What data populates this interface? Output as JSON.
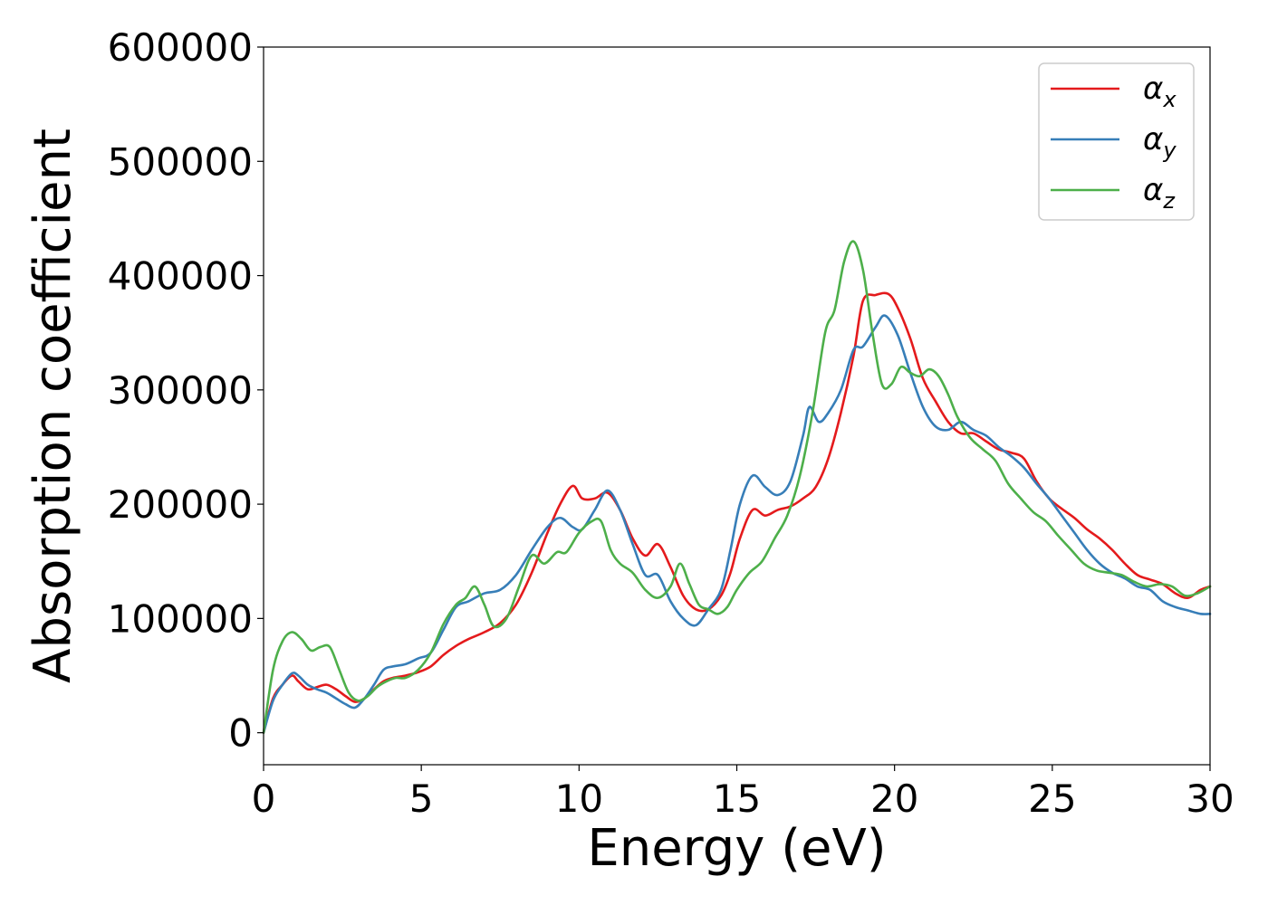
{
  "chart_data": {
    "type": "line",
    "title": "",
    "xlabel": "Energy (eV)",
    "ylabel": "Absorption coefficient",
    "xlim": [
      0,
      30
    ],
    "ylim": [
      -28000,
      600000
    ],
    "xticks": [
      0,
      5,
      10,
      15,
      20,
      25,
      30
    ],
    "yticks": [
      0,
      100000,
      200000,
      300000,
      400000,
      500000,
      600000
    ],
    "xtick_labels": [
      "0",
      "5",
      "10",
      "15",
      "20",
      "25",
      "30"
    ],
    "ytick_labels": [
      "0",
      "100000",
      "200000",
      "300000",
      "400000",
      "500000",
      "600000"
    ],
    "grid": false,
    "legend_position": "top-right",
    "series": [
      {
        "name": "α_x",
        "legend_base": "α",
        "legend_sub": "x",
        "color": "#e41a1c",
        "x": [
          0,
          0.3,
          0.6,
          0.9,
          1.1,
          1.4,
          1.7,
          2.0,
          2.3,
          2.6,
          2.9,
          3.2,
          3.5,
          3.8,
          4.1,
          4.5,
          4.9,
          5.3,
          5.7,
          6.1,
          6.5,
          7.0,
          7.5,
          8.0,
          8.5,
          9.0,
          9.4,
          9.8,
          10.1,
          10.5,
          10.9,
          11.3,
          11.7,
          12.1,
          12.5,
          12.9,
          13.3,
          13.7,
          14.1,
          14.5,
          14.8,
          15.1,
          15.5,
          15.9,
          16.3,
          16.7,
          17.1,
          17.5,
          17.9,
          18.3,
          18.7,
          19.0,
          19.4,
          19.8,
          20.1,
          20.5,
          20.9,
          21.3,
          21.7,
          22.1,
          22.5,
          22.9,
          23.3,
          23.7,
          24.1,
          24.5,
          24.9,
          25.3,
          25.7,
          26.1,
          26.5,
          26.9,
          27.3,
          27.7,
          28.1,
          28.5,
          28.9,
          29.3,
          29.7,
          30.0
        ],
        "y": [
          0,
          30000,
          42000,
          50000,
          45000,
          38000,
          40000,
          42000,
          38000,
          32000,
          27000,
          30000,
          38000,
          45000,
          48000,
          50000,
          53000,
          58000,
          68000,
          76000,
          82000,
          88000,
          96000,
          112000,
          140000,
          175000,
          200000,
          216000,
          205000,
          205000,
          210000,
          195000,
          170000,
          155000,
          165000,
          145000,
          120000,
          108000,
          108000,
          120000,
          140000,
          170000,
          195000,
          190000,
          195000,
          198000,
          205000,
          215000,
          240000,
          280000,
          330000,
          378000,
          383000,
          384000,
          372000,
          345000,
          310000,
          290000,
          272000,
          262000,
          262000,
          255000,
          248000,
          245000,
          240000,
          220000,
          205000,
          196000,
          188000,
          178000,
          170000,
          160000,
          148000,
          138000,
          134000,
          130000,
          122000,
          118000,
          125000,
          128000
        ]
      },
      {
        "name": "α_y",
        "legend_base": "α",
        "legend_sub": "y",
        "color": "#377eb8",
        "x": [
          0,
          0.3,
          0.6,
          0.9,
          1.1,
          1.4,
          1.7,
          2.0,
          2.3,
          2.6,
          2.9,
          3.2,
          3.5,
          3.8,
          4.1,
          4.5,
          4.9,
          5.3,
          5.7,
          6.1,
          6.5,
          7.0,
          7.5,
          8.0,
          8.5,
          9.0,
          9.4,
          9.8,
          10.1,
          10.5,
          10.9,
          11.3,
          11.7,
          12.1,
          12.5,
          12.9,
          13.3,
          13.7,
          14.1,
          14.5,
          14.8,
          15.1,
          15.5,
          15.9,
          16.3,
          16.7,
          17.1,
          17.3,
          17.6,
          17.9,
          18.3,
          18.7,
          19.0,
          19.4,
          19.7,
          20.1,
          20.5,
          20.9,
          21.3,
          21.7,
          22.1,
          22.5,
          22.9,
          23.3,
          23.7,
          24.1,
          24.5,
          24.9,
          25.3,
          25.7,
          26.1,
          26.5,
          26.9,
          27.3,
          27.7,
          28.1,
          28.5,
          28.9,
          29.3,
          29.7,
          30.0
        ],
        "y": [
          0,
          28000,
          42000,
          52000,
          50000,
          42000,
          38000,
          35000,
          30000,
          25000,
          22000,
          30000,
          42000,
          55000,
          58000,
          60000,
          65000,
          70000,
          90000,
          110000,
          115000,
          122000,
          125000,
          138000,
          160000,
          180000,
          188000,
          180000,
          178000,
          195000,
          212000,
          195000,
          165000,
          138000,
          138000,
          115000,
          100000,
          94000,
          108000,
          125000,
          160000,
          200000,
          225000,
          215000,
          208000,
          220000,
          260000,
          285000,
          272000,
          280000,
          300000,
          335000,
          338000,
          355000,
          365000,
          348000,
          315000,
          285000,
          268000,
          265000,
          272000,
          265000,
          260000,
          250000,
          242000,
          232000,
          218000,
          205000,
          190000,
          175000,
          160000,
          148000,
          140000,
          135000,
          128000,
          125000,
          115000,
          110000,
          107000,
          104000,
          104000
        ]
      },
      {
        "name": "α_z",
        "legend_base": "α",
        "legend_sub": "z",
        "color": "#4daf4a",
        "x": [
          0,
          0.3,
          0.6,
          0.9,
          1.2,
          1.5,
          1.8,
          2.1,
          2.4,
          2.7,
          3.0,
          3.3,
          3.6,
          3.9,
          4.2,
          4.5,
          4.9,
          5.3,
          5.7,
          6.1,
          6.4,
          6.7,
          7.0,
          7.3,
          7.7,
          8.1,
          8.5,
          8.9,
          9.3,
          9.6,
          10.0,
          10.4,
          10.7,
          11.0,
          11.3,
          11.7,
          12.1,
          12.5,
          12.9,
          13.2,
          13.5,
          13.8,
          14.1,
          14.4,
          14.7,
          15.0,
          15.4,
          15.8,
          16.2,
          16.6,
          17.0,
          17.4,
          17.8,
          18.1,
          18.4,
          18.7,
          19.0,
          19.3,
          19.6,
          19.9,
          20.2,
          20.5,
          20.8,
          21.1,
          21.4,
          21.7,
          22.0,
          22.4,
          22.8,
          23.2,
          23.6,
          24.0,
          24.4,
          24.8,
          25.2,
          25.6,
          26.0,
          26.4,
          26.8,
          27.2,
          27.6,
          28.0,
          28.4,
          28.8,
          29.2,
          29.6,
          30.0
        ],
        "y": [
          0,
          55000,
          80000,
          88000,
          82000,
          72000,
          75000,
          75000,
          55000,
          35000,
          28000,
          32000,
          40000,
          45000,
          48000,
          48000,
          55000,
          70000,
          95000,
          112000,
          118000,
          128000,
          112000,
          93000,
          100000,
          128000,
          155000,
          148000,
          158000,
          158000,
          175000,
          185000,
          185000,
          160000,
          148000,
          140000,
          125000,
          118000,
          128000,
          148000,
          130000,
          112000,
          108000,
          104000,
          110000,
          125000,
          140000,
          150000,
          170000,
          190000,
          225000,
          280000,
          350000,
          370000,
          412000,
          430000,
          405000,
          350000,
          305000,
          305000,
          320000,
          315000,
          312000,
          318000,
          312000,
          296000,
          276000,
          258000,
          248000,
          238000,
          218000,
          205000,
          193000,
          185000,
          172000,
          160000,
          148000,
          142000,
          140000,
          138000,
          132000,
          128000,
          130000,
          128000,
          120000,
          122000,
          128000
        ]
      }
    ]
  }
}
